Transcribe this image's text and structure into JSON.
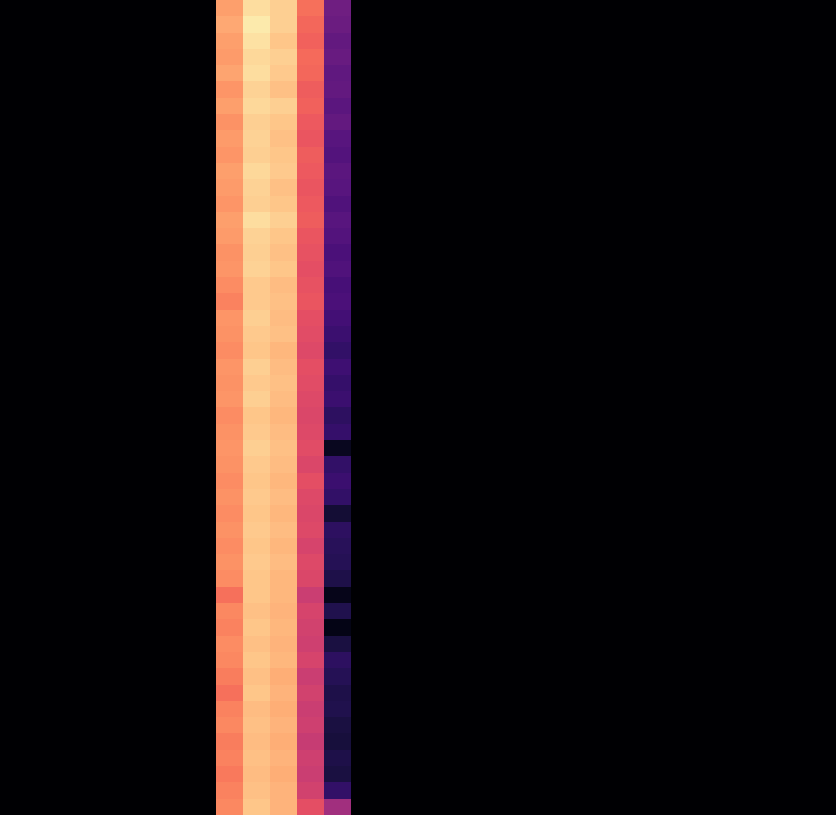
{
  "chart_data": {
    "type": "heatmap",
    "color": "magma",
    "color_range": [
      0,
      1
    ],
    "tick_labels": false,
    "cells": [
      [
        0,
        0,
        0,
        0,
        0,
        0,
        0,
        0,
        0.8,
        0.93,
        0.9,
        0.7,
        0.33,
        0,
        0,
        0,
        0,
        0,
        0,
        0,
        0,
        0,
        0,
        0,
        0,
        0,
        0,
        0,
        0,
        0,
        0
      ],
      [
        0,
        0,
        0,
        0,
        0,
        0,
        0,
        0,
        0.82,
        0.96,
        0.9,
        0.68,
        0.32,
        0,
        0,
        0,
        0,
        0,
        0,
        0,
        0,
        0,
        0,
        0,
        0,
        0,
        0,
        0,
        0,
        0,
        0
      ],
      [
        0,
        0,
        0,
        0,
        0,
        0,
        0,
        0,
        0.8,
        0.94,
        0.88,
        0.67,
        0.3,
        0,
        0,
        0,
        0,
        0,
        0,
        0,
        0,
        0,
        0,
        0,
        0,
        0,
        0,
        0,
        0,
        0,
        0
      ],
      [
        0,
        0,
        0,
        0,
        0,
        0,
        0,
        0,
        0.79,
        0.92,
        0.9,
        0.69,
        0.31,
        0,
        0,
        0,
        0,
        0,
        0,
        0,
        0,
        0,
        0,
        0,
        0,
        0,
        0,
        0,
        0,
        0,
        0
      ],
      [
        0,
        0,
        0,
        0,
        0,
        0,
        0,
        0,
        0.81,
        0.93,
        0.89,
        0.68,
        0.29,
        0,
        0,
        0,
        0,
        0,
        0,
        0,
        0,
        0,
        0,
        0,
        0,
        0,
        0,
        0,
        0,
        0,
        0
      ],
      [
        0,
        0,
        0,
        0,
        0,
        0,
        0,
        0,
        0.78,
        0.91,
        0.87,
        0.66,
        0.3,
        0,
        0,
        0,
        0,
        0,
        0,
        0,
        0,
        0,
        0,
        0,
        0,
        0,
        0,
        0,
        0,
        0,
        0
      ],
      [
        0,
        0,
        0,
        0,
        0,
        0,
        0,
        0,
        0.8,
        0.92,
        0.9,
        0.67,
        0.28,
        0,
        0,
        0,
        0,
        0,
        0,
        0,
        0,
        0,
        0,
        0,
        0,
        0,
        0,
        0,
        0,
        0,
        0
      ],
      [
        0,
        0,
        0,
        0,
        0,
        0,
        0,
        0,
        0.77,
        0.9,
        0.88,
        0.65,
        0.3,
        0,
        0,
        0,
        0,
        0,
        0,
        0,
        0,
        0,
        0,
        0,
        0,
        0,
        0,
        0,
        0,
        0,
        0
      ],
      [
        0,
        0,
        0,
        0,
        0,
        0,
        0,
        0,
        0.79,
        0.91,
        0.87,
        0.64,
        0.27,
        0,
        0,
        0,
        0,
        0,
        0,
        0,
        0,
        0,
        0,
        0,
        0,
        0,
        0,
        0,
        0,
        0,
        0
      ],
      [
        0,
        0,
        0,
        0,
        0,
        0,
        0,
        0,
        0.78,
        0.9,
        0.88,
        0.66,
        0.26,
        0,
        0,
        0,
        0,
        0,
        0,
        0,
        0,
        0,
        0,
        0,
        0,
        0,
        0,
        0,
        0,
        0,
        0
      ],
      [
        0,
        0,
        0,
        0,
        0,
        0,
        0,
        0,
        0.8,
        0.92,
        0.89,
        0.65,
        0.28,
        0,
        0,
        0,
        0,
        0,
        0,
        0,
        0,
        0,
        0,
        0,
        0,
        0,
        0,
        0,
        0,
        0,
        0
      ],
      [
        0,
        0,
        0,
        0,
        0,
        0,
        0,
        0,
        0.79,
        0.91,
        0.87,
        0.64,
        0.27,
        0,
        0,
        0,
        0,
        0,
        0,
        0,
        0,
        0,
        0,
        0,
        0,
        0,
        0,
        0,
        0,
        0,
        0
      ],
      [
        0,
        0,
        0,
        0,
        0,
        0,
        0,
        0,
        0.78,
        0.9,
        0.88,
        0.65,
        0.25,
        0,
        0,
        0,
        0,
        0,
        0,
        0,
        0,
        0,
        0,
        0,
        0,
        0,
        0,
        0,
        0,
        0,
        0
      ],
      [
        0,
        0,
        0,
        0,
        0,
        0,
        0,
        0,
        0.8,
        0.93,
        0.9,
        0.66,
        0.27,
        0,
        0,
        0,
        0,
        0,
        0,
        0,
        0,
        0,
        0,
        0,
        0,
        0,
        0,
        0,
        0,
        0,
        0
      ],
      [
        0,
        0,
        0,
        0,
        0,
        0,
        0,
        0,
        0.79,
        0.91,
        0.88,
        0.64,
        0.26,
        0,
        0,
        0,
        0,
        0,
        0,
        0,
        0,
        0,
        0,
        0,
        0,
        0,
        0,
        0,
        0,
        0,
        0
      ],
      [
        0,
        0,
        0,
        0,
        0,
        0,
        0,
        0,
        0.77,
        0.9,
        0.87,
        0.63,
        0.24,
        0,
        0,
        0,
        0,
        0,
        0,
        0,
        0,
        0,
        0,
        0,
        0,
        0,
        0,
        0,
        0,
        0,
        0
      ],
      [
        0,
        0,
        0,
        0,
        0,
        0,
        0,
        0,
        0.78,
        0.91,
        0.88,
        0.62,
        0.25,
        0,
        0,
        0,
        0,
        0,
        0,
        0,
        0,
        0,
        0,
        0,
        0,
        0,
        0,
        0,
        0,
        0,
        0
      ],
      [
        0,
        0,
        0,
        0,
        0,
        0,
        0,
        0,
        0.76,
        0.89,
        0.86,
        0.63,
        0.23,
        0,
        0,
        0,
        0,
        0,
        0,
        0,
        0,
        0,
        0,
        0,
        0,
        0,
        0,
        0,
        0,
        0,
        0
      ],
      [
        0,
        0,
        0,
        0,
        0,
        0,
        0,
        0,
        0.74,
        0.89,
        0.87,
        0.64,
        0.24,
        0,
        0,
        0,
        0,
        0,
        0,
        0,
        0,
        0,
        0,
        0,
        0,
        0,
        0,
        0,
        0,
        0,
        0
      ],
      [
        0,
        0,
        0,
        0,
        0,
        0,
        0,
        0,
        0.78,
        0.9,
        0.86,
        0.62,
        0.22,
        0,
        0,
        0,
        0,
        0,
        0,
        0,
        0,
        0,
        0,
        0,
        0,
        0,
        0,
        0,
        0,
        0,
        0
      ],
      [
        0,
        0,
        0,
        0,
        0,
        0,
        0,
        0,
        0.77,
        0.89,
        0.87,
        0.61,
        0.2,
        0,
        0,
        0,
        0,
        0,
        0,
        0,
        0,
        0,
        0,
        0,
        0,
        0,
        0,
        0,
        0,
        0,
        0
      ],
      [
        0,
        0,
        0,
        0,
        0,
        0,
        0,
        0,
        0.76,
        0.88,
        0.85,
        0.6,
        0.18,
        0,
        0,
        0,
        0,
        0,
        0,
        0,
        0,
        0,
        0,
        0,
        0,
        0,
        0,
        0,
        0,
        0,
        0
      ],
      [
        0,
        0,
        0,
        0,
        0,
        0,
        0,
        0,
        0.78,
        0.9,
        0.86,
        0.62,
        0.21,
        0,
        0,
        0,
        0,
        0,
        0,
        0,
        0,
        0,
        0,
        0,
        0,
        0,
        0,
        0,
        0,
        0,
        0
      ],
      [
        0,
        0,
        0,
        0,
        0,
        0,
        0,
        0,
        0.77,
        0.89,
        0.87,
        0.61,
        0.19,
        0,
        0,
        0,
        0,
        0,
        0,
        0,
        0,
        0,
        0,
        0,
        0,
        0,
        0,
        0,
        0,
        0,
        0
      ],
      [
        0,
        0,
        0,
        0,
        0,
        0,
        0,
        0,
        0.78,
        0.9,
        0.86,
        0.6,
        0.2,
        0,
        0,
        0,
        0,
        0,
        0,
        0,
        0,
        0,
        0,
        0,
        0,
        0,
        0,
        0,
        0,
        0,
        0
      ],
      [
        0,
        0,
        0,
        0,
        0,
        0,
        0,
        0,
        0.76,
        0.88,
        0.85,
        0.59,
        0.17,
        0,
        0,
        0,
        0,
        0,
        0,
        0,
        0,
        0,
        0,
        0,
        0,
        0,
        0,
        0,
        0,
        0,
        0
      ],
      [
        0,
        0,
        0,
        0,
        0,
        0,
        0,
        0,
        0.77,
        0.89,
        0.86,
        0.6,
        0.19,
        0,
        0,
        0,
        0,
        0,
        0,
        0,
        0,
        0,
        0,
        0,
        0,
        0,
        0,
        0,
        0,
        0,
        0
      ],
      [
        0,
        0,
        0,
        0,
        0,
        0,
        0,
        0,
        0.78,
        0.9,
        0.87,
        0.61,
        0.06,
        0,
        0,
        0,
        0,
        0,
        0,
        0,
        0,
        0,
        0,
        0,
        0,
        0,
        0,
        0,
        0,
        0,
        0
      ],
      [
        0,
        0,
        0,
        0,
        0,
        0,
        0,
        0,
        0.77,
        0.89,
        0.86,
        0.59,
        0.18,
        0,
        0,
        0,
        0,
        0,
        0,
        0,
        0,
        0,
        0,
        0,
        0,
        0,
        0,
        0,
        0,
        0,
        0
      ],
      [
        0,
        0,
        0,
        0,
        0,
        0,
        0,
        0,
        0.76,
        0.88,
        0.85,
        0.62,
        0.2,
        0,
        0,
        0,
        0,
        0,
        0,
        0,
        0,
        0,
        0,
        0,
        0,
        0,
        0,
        0,
        0,
        0,
        0
      ],
      [
        0,
        0,
        0,
        0,
        0,
        0,
        0,
        0,
        0.77,
        0.89,
        0.86,
        0.6,
        0.18,
        0,
        0,
        0,
        0,
        0,
        0,
        0,
        0,
        0,
        0,
        0,
        0,
        0,
        0,
        0,
        0,
        0,
        0
      ],
      [
        0,
        0,
        0,
        0,
        0,
        0,
        0,
        0,
        0.76,
        0.88,
        0.85,
        0.59,
        0.1,
        0,
        0,
        0,
        0,
        0,
        0,
        0,
        0,
        0,
        0,
        0,
        0,
        0,
        0,
        0,
        0,
        0,
        0
      ],
      [
        0,
        0,
        0,
        0,
        0,
        0,
        0,
        0,
        0.77,
        0.89,
        0.86,
        0.6,
        0.17,
        0,
        0,
        0,
        0,
        0,
        0,
        0,
        0,
        0,
        0,
        0,
        0,
        0,
        0,
        0,
        0,
        0,
        0
      ],
      [
        0,
        0,
        0,
        0,
        0,
        0,
        0,
        0,
        0.76,
        0.88,
        0.85,
        0.58,
        0.16,
        0,
        0,
        0,
        0,
        0,
        0,
        0,
        0,
        0,
        0,
        0,
        0,
        0,
        0,
        0,
        0,
        0,
        0
      ],
      [
        0,
        0,
        0,
        0,
        0,
        0,
        0,
        0,
        0.77,
        0.89,
        0.86,
        0.6,
        0.15,
        0,
        0,
        0,
        0,
        0,
        0,
        0,
        0,
        0,
        0,
        0,
        0,
        0,
        0,
        0,
        0,
        0,
        0
      ],
      [
        0,
        0,
        0,
        0,
        0,
        0,
        0,
        0,
        0.76,
        0.88,
        0.85,
        0.59,
        0.13,
        0,
        0,
        0,
        0,
        0,
        0,
        0,
        0,
        0,
        0,
        0,
        0,
        0,
        0,
        0,
        0,
        0,
        0
      ],
      [
        0,
        0,
        0,
        0,
        0,
        0,
        0,
        0,
        0.7,
        0.88,
        0.85,
        0.55,
        0.05,
        0,
        0,
        0,
        0,
        0,
        0,
        0,
        0,
        0,
        0,
        0,
        0,
        0,
        0,
        0,
        0,
        0,
        0
      ],
      [
        0,
        0,
        0,
        0,
        0,
        0,
        0,
        0,
        0.75,
        0.87,
        0.84,
        0.58,
        0.14,
        0,
        0,
        0,
        0,
        0,
        0,
        0,
        0,
        0,
        0,
        0,
        0,
        0,
        0,
        0,
        0,
        0,
        0
      ],
      [
        0,
        0,
        0,
        0,
        0,
        0,
        0,
        0,
        0.74,
        0.88,
        0.85,
        0.57,
        0.04,
        0,
        0,
        0,
        0,
        0,
        0,
        0,
        0,
        0,
        0,
        0,
        0,
        0,
        0,
        0,
        0,
        0,
        0
      ],
      [
        0,
        0,
        0,
        0,
        0,
        0,
        0,
        0,
        0.76,
        0.87,
        0.84,
        0.56,
        0.12,
        0,
        0,
        0,
        0,
        0,
        0,
        0,
        0,
        0,
        0,
        0,
        0,
        0,
        0,
        0,
        0,
        0,
        0
      ],
      [
        0,
        0,
        0,
        0,
        0,
        0,
        0,
        0,
        0.75,
        0.88,
        0.85,
        0.58,
        0.17,
        0,
        0,
        0,
        0,
        0,
        0,
        0,
        0,
        0,
        0,
        0,
        0,
        0,
        0,
        0,
        0,
        0,
        0
      ],
      [
        0,
        0,
        0,
        0,
        0,
        0,
        0,
        0,
        0.73,
        0.87,
        0.83,
        0.55,
        0.15,
        0,
        0,
        0,
        0,
        0,
        0,
        0,
        0,
        0,
        0,
        0,
        0,
        0,
        0,
        0,
        0,
        0,
        0
      ],
      [
        0,
        0,
        0,
        0,
        0,
        0,
        0,
        0,
        0.7,
        0.88,
        0.84,
        0.57,
        0.13,
        0,
        0,
        0,
        0,
        0,
        0,
        0,
        0,
        0,
        0,
        0,
        0,
        0,
        0,
        0,
        0,
        0,
        0
      ],
      [
        0,
        0,
        0,
        0,
        0,
        0,
        0,
        0,
        0.74,
        0.86,
        0.83,
        0.55,
        0.14,
        0,
        0,
        0,
        0,
        0,
        0,
        0,
        0,
        0,
        0,
        0,
        0,
        0,
        0,
        0,
        0,
        0,
        0
      ],
      [
        0,
        0,
        0,
        0,
        0,
        0,
        0,
        0,
        0.75,
        0.87,
        0.84,
        0.56,
        0.12,
        0,
        0,
        0,
        0,
        0,
        0,
        0,
        0,
        0,
        0,
        0,
        0,
        0,
        0,
        0,
        0,
        0,
        0
      ],
      [
        0,
        0,
        0,
        0,
        0,
        0,
        0,
        0,
        0.73,
        0.86,
        0.83,
        0.54,
        0.11,
        0,
        0,
        0,
        0,
        0,
        0,
        0,
        0,
        0,
        0,
        0,
        0,
        0,
        0,
        0,
        0,
        0,
        0
      ],
      [
        0,
        0,
        0,
        0,
        0,
        0,
        0,
        0,
        0.74,
        0.87,
        0.84,
        0.56,
        0.13,
        0,
        0,
        0,
        0,
        0,
        0,
        0,
        0,
        0,
        0,
        0,
        0,
        0,
        0,
        0,
        0,
        0,
        0
      ],
      [
        0,
        0,
        0,
        0,
        0,
        0,
        0,
        0,
        0.72,
        0.86,
        0.83,
        0.55,
        0.12,
        0,
        0,
        0,
        0,
        0,
        0,
        0,
        0,
        0,
        0,
        0,
        0,
        0,
        0,
        0,
        0,
        0,
        0
      ],
      [
        0,
        0,
        0,
        0,
        0,
        0,
        0,
        0,
        0.74,
        0.87,
        0.84,
        0.57,
        0.18,
        0,
        0,
        0,
        0,
        0,
        0,
        0,
        0,
        0,
        0,
        0,
        0,
        0,
        0,
        0,
        0,
        0,
        0
      ],
      [
        0,
        0,
        0,
        0,
        0,
        0,
        0,
        0,
        0.75,
        0.88,
        0.84,
        0.62,
        0.45,
        0,
        0,
        0,
        0,
        0,
        0,
        0,
        0,
        0,
        0,
        0,
        0,
        0,
        0,
        0,
        0,
        0,
        0
      ]
    ]
  }
}
